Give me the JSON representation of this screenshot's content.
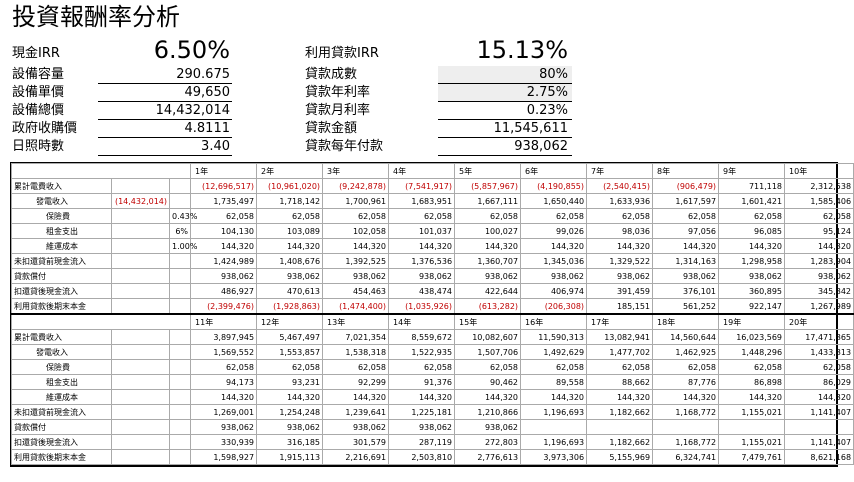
{
  "title": "投資報酬率分析",
  "summary_left": [
    {
      "label": "現金IRR",
      "value": "6.50%"
    },
    {
      "label": "設備容量",
      "value": "290.675"
    },
    {
      "label": "設備單價",
      "value": "49,650"
    },
    {
      "label": "設備總價",
      "value": "14,432,014"
    },
    {
      "label": "政府收購價",
      "value": "4.8111"
    },
    {
      "label": "日照時數",
      "value": "3.40"
    }
  ],
  "summary_right": [
    {
      "label": "利用貸款IRR",
      "value": "15.13%"
    },
    {
      "label": "貸款成數",
      "value": "80%"
    },
    {
      "label": "貸款年利率",
      "value": "2.75%"
    },
    {
      "label": "貸款月利率",
      "value": "0.23%"
    },
    {
      "label": "貸款金額",
      "value": "11,545,611"
    },
    {
      "label": "貸款每年付款",
      "value": "938,062"
    }
  ],
  "table1": {
    "headers": [
      "1年",
      "2年",
      "3年",
      "4年",
      "5年",
      "6年",
      "7年",
      "8年",
      "9年",
      "10年"
    ],
    "rows": [
      {
        "label": "累計電費收入",
        "sub": "",
        "pct": "",
        "vals": [
          "(12,696,517)",
          "(10,961,020)",
          "(9,242,878)",
          "(7,541,917)",
          "(5,857,967)",
          "(4,190,855)",
          "(2,540,415)",
          "(906,479)",
          "711,118",
          "2,312,538"
        ]
      },
      {
        "label": "發電收入",
        "sub": "(14,432,014)",
        "pct": "",
        "vals": [
          "1,735,497",
          "1,718,142",
          "1,700,961",
          "1,683,951",
          "1,667,111",
          "1,650,440",
          "1,633,936",
          "1,617,597",
          "1,601,421",
          "1,585,406"
        ]
      },
      {
        "label": "保險費",
        "sub": "",
        "pct": "0.43%",
        "vals": [
          "62,058",
          "62,058",
          "62,058",
          "62,058",
          "62,058",
          "62,058",
          "62,058",
          "62,058",
          "62,058",
          "62,058"
        ]
      },
      {
        "label": "租金支出",
        "sub": "",
        "pct": "6%",
        "vals": [
          "104,130",
          "103,089",
          "102,058",
          "101,037",
          "100,027",
          "99,026",
          "98,036",
          "97,056",
          "96,085",
          "95,124"
        ]
      },
      {
        "label": "維運成本",
        "sub": "",
        "pct": "1.00%",
        "vals": [
          "144,320",
          "144,320",
          "144,320",
          "144,320",
          "144,320",
          "144,320",
          "144,320",
          "144,320",
          "144,320",
          "144,320"
        ]
      },
      {
        "label": "未扣還貸前現金流入",
        "sub": "",
        "pct": "",
        "vals": [
          "1,424,989",
          "1,408,676",
          "1,392,525",
          "1,376,536",
          "1,360,707",
          "1,345,036",
          "1,329,522",
          "1,314,163",
          "1,298,958",
          "1,283,904"
        ]
      },
      {
        "label": "貸款償付",
        "sub": "",
        "pct": "",
        "vals": [
          "938,062",
          "938,062",
          "938,062",
          "938,062",
          "938,062",
          "938,062",
          "938,062",
          "938,062",
          "938,062",
          "938,062"
        ]
      },
      {
        "label": "扣還貸後現金流入",
        "sub": "",
        "pct": "",
        "vals": [
          "486,927",
          "470,613",
          "454,463",
          "438,474",
          "422,644",
          "406,974",
          "391,459",
          "376,101",
          "360,895",
          "345,842"
        ]
      },
      {
        "label": "利用貸款後期末本金",
        "sub": "",
        "pct": "",
        "vals": [
          "(2,399,476)",
          "(1,928,863)",
          "(1,474,400)",
          "(1,035,926)",
          "(613,282)",
          "(206,308)",
          "185,151",
          "561,252",
          "922,147",
          "1,267,989"
        ]
      }
    ]
  },
  "table2": {
    "headers": [
      "11年",
      "12年",
      "13年",
      "14年",
      "15年",
      "16年",
      "17年",
      "18年",
      "19年",
      "20年"
    ],
    "rows": [
      {
        "label": "累計電費收入",
        "vals": [
          "3,897,945",
          "5,467,497",
          "7,021,354",
          "8,559,672",
          "10,082,607",
          "11,590,313",
          "13,082,941",
          "14,560,644",
          "16,023,569",
          "17,471,865"
        ]
      },
      {
        "label": "發電收入",
        "vals": [
          "1,569,552",
          "1,553,857",
          "1,538,318",
          "1,522,935",
          "1,507,706",
          "1,492,629",
          "1,477,702",
          "1,462,925",
          "1,448,296",
          "1,433,813"
        ]
      },
      {
        "label": "保險費",
        "vals": [
          "62,058",
          "62,058",
          "62,058",
          "62,058",
          "62,058",
          "62,058",
          "62,058",
          "62,058",
          "62,058",
          "62,058"
        ]
      },
      {
        "label": "租金支出",
        "vals": [
          "94,173",
          "93,231",
          "92,299",
          "91,376",
          "90,462",
          "89,558",
          "88,662",
          "87,776",
          "86,898",
          "86,029"
        ]
      },
      {
        "label": "維運成本",
        "vals": [
          "144,320",
          "144,320",
          "144,320",
          "144,320",
          "144,320",
          "144,320",
          "144,320",
          "144,320",
          "144,320",
          "144,320"
        ]
      },
      {
        "label": "未扣還貸前現金流入",
        "vals": [
          "1,269,001",
          "1,254,248",
          "1,239,641",
          "1,225,181",
          "1,210,866",
          "1,196,693",
          "1,182,662",
          "1,168,772",
          "1,155,021",
          "1,141,407"
        ]
      },
      {
        "label": "貸款償付",
        "vals": [
          "938,062",
          "938,062",
          "938,062",
          "938,062",
          "938,062",
          "",
          "",
          "",
          "",
          ""
        ]
      },
      {
        "label": "扣還貸後現金流入",
        "vals": [
          "330,939",
          "316,185",
          "301,579",
          "287,119",
          "272,803",
          "1,196,693",
          "1,182,662",
          "1,168,772",
          "1,155,021",
          "1,141,407"
        ]
      },
      {
        "label": "利用貸款後期末本金",
        "vals": [
          "1,598,927",
          "1,915,113",
          "2,216,691",
          "2,503,810",
          "2,776,613",
          "3,973,306",
          "5,155,969",
          "6,324,741",
          "7,479,761",
          "8,621,168"
        ]
      }
    ]
  },
  "colors": {
    "negative": "#c00000",
    "shade": "#eeeeee"
  }
}
